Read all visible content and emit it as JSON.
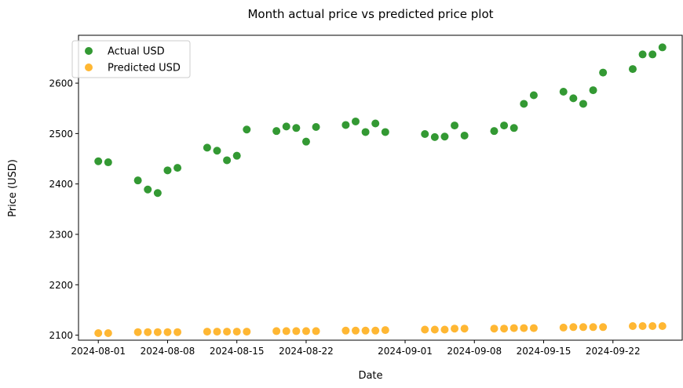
{
  "chart_data": {
    "type": "scatter",
    "title": "Month actual price vs predicted price plot",
    "xlabel": "Date",
    "ylabel": "Price (USD)",
    "xlim": [
      "2024-07-30",
      "2024-09-29"
    ],
    "ylim": [
      2090,
      2695
    ],
    "x_ticks": [
      "2024-08-01",
      "2024-08-08",
      "2024-08-15",
      "2024-08-22",
      "2024-09-01",
      "2024-09-08",
      "2024-09-15",
      "2024-09-22"
    ],
    "y_ticks": [
      2100,
      2200,
      2300,
      2400,
      2500,
      2600
    ],
    "grid": false,
    "legend_position": "upper-left",
    "series": [
      {
        "name": "Actual USD",
        "color": "#008000",
        "x": [
          "2024-08-01",
          "2024-08-02",
          "2024-08-05",
          "2024-08-06",
          "2024-08-07",
          "2024-08-08",
          "2024-08-09",
          "2024-08-12",
          "2024-08-13",
          "2024-08-14",
          "2024-08-15",
          "2024-08-16",
          "2024-08-19",
          "2024-08-20",
          "2024-08-21",
          "2024-08-22",
          "2024-08-23",
          "2024-08-26",
          "2024-08-27",
          "2024-08-28",
          "2024-08-29",
          "2024-08-30",
          "2024-09-03",
          "2024-09-04",
          "2024-09-05",
          "2024-09-06",
          "2024-09-07",
          "2024-09-10",
          "2024-09-11",
          "2024-09-12",
          "2024-09-13",
          "2024-09-14",
          "2024-09-17",
          "2024-09-18",
          "2024-09-19",
          "2024-09-20",
          "2024-09-21",
          "2024-09-24",
          "2024-09-25",
          "2024-09-26",
          "2024-09-27"
        ],
        "y": [
          2445,
          2443,
          2407,
          2389,
          2382,
          2427,
          2432,
          2472,
          2466,
          2447,
          2456,
          2508,
          2505,
          2514,
          2511,
          2484,
          2513,
          2517,
          2524,
          2503,
          2520,
          2503,
          2499,
          2493,
          2494,
          2516,
          2496,
          2505,
          2516,
          2511,
          2559,
          2576,
          2583,
          2570,
          2559,
          2586,
          2621,
          2628,
          2657,
          2657,
          2671
        ]
      },
      {
        "name": "Predicted USD",
        "color": "#FFA500",
        "x": [
          "2024-08-01",
          "2024-08-02",
          "2024-08-05",
          "2024-08-06",
          "2024-08-07",
          "2024-08-08",
          "2024-08-09",
          "2024-08-12",
          "2024-08-13",
          "2024-08-14",
          "2024-08-15",
          "2024-08-16",
          "2024-08-19",
          "2024-08-20",
          "2024-08-21",
          "2024-08-22",
          "2024-08-23",
          "2024-08-26",
          "2024-08-27",
          "2024-08-28",
          "2024-08-29",
          "2024-08-30",
          "2024-09-03",
          "2024-09-04",
          "2024-09-05",
          "2024-09-06",
          "2024-09-07",
          "2024-09-10",
          "2024-09-11",
          "2024-09-12",
          "2024-09-13",
          "2024-09-14",
          "2024-09-17",
          "2024-09-18",
          "2024-09-19",
          "2024-09-20",
          "2024-09-21",
          "2024-09-24",
          "2024-09-25",
          "2024-09-26",
          "2024-09-27"
        ],
        "y": [
          2104,
          2104,
          2106,
          2106,
          2106,
          2106,
          2106,
          2107,
          2107,
          2107,
          2107,
          2107,
          2108,
          2108,
          2108,
          2108,
          2108,
          2109,
          2109,
          2109,
          2109,
          2110,
          2111,
          2111,
          2111,
          2113,
          2113,
          2113,
          2113,
          2114,
          2114,
          2114,
          2115,
          2116,
          2116,
          2116,
          2116,
          2118,
          2118,
          2118,
          2118
        ]
      }
    ]
  }
}
